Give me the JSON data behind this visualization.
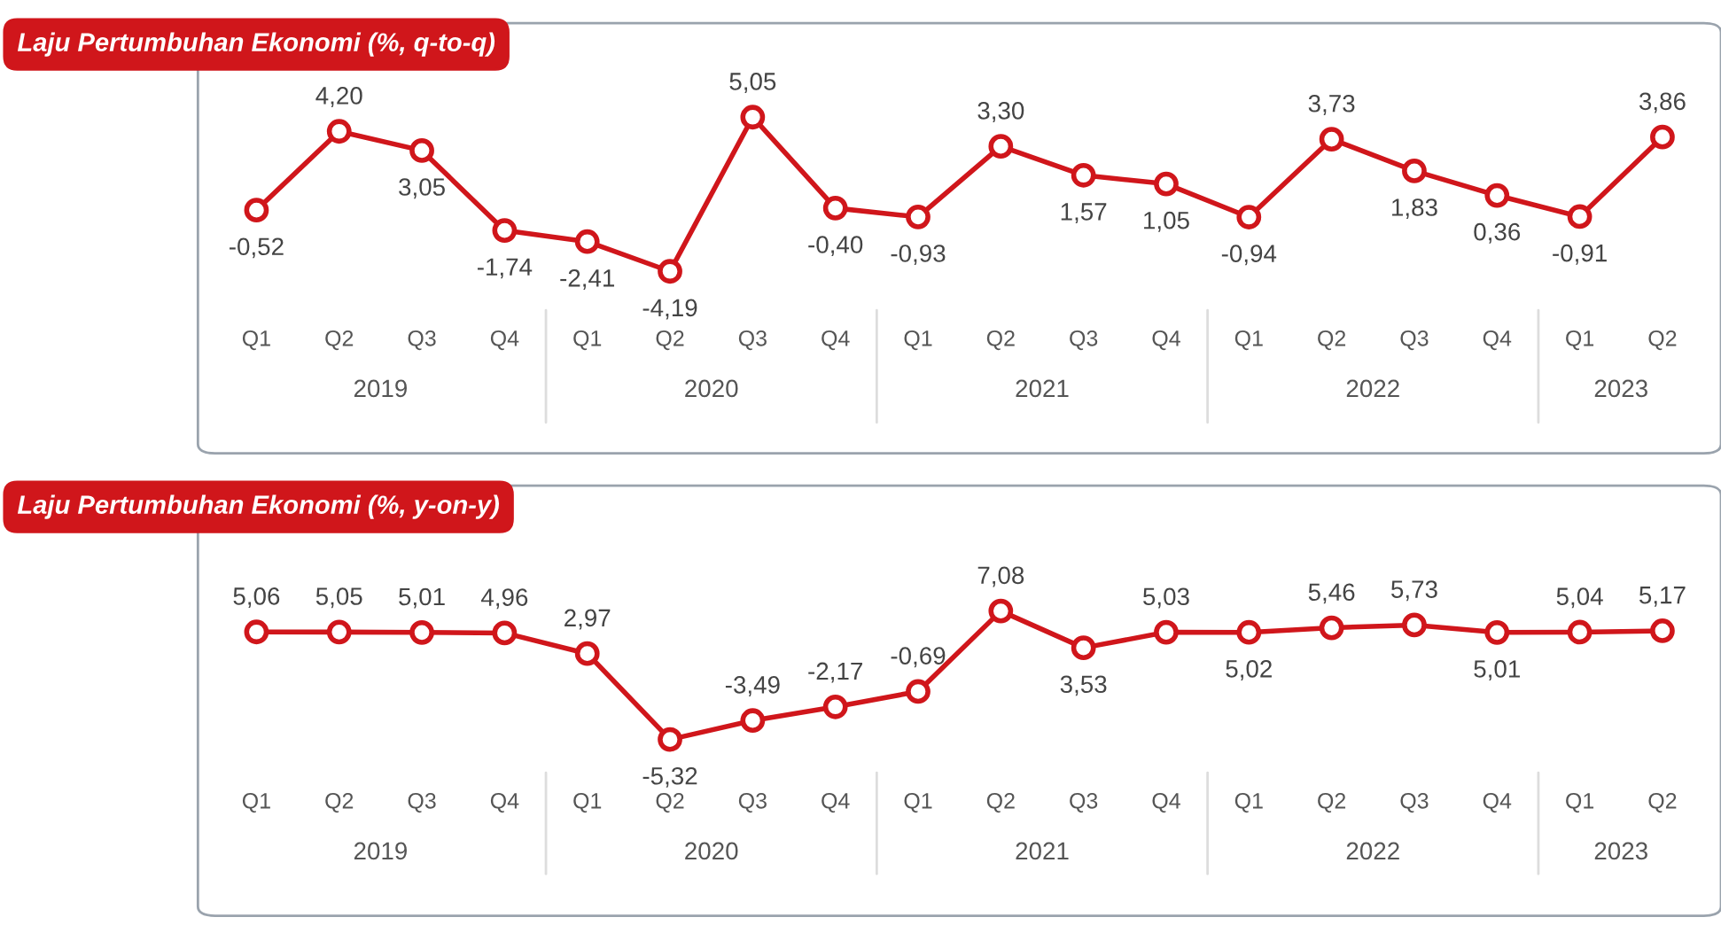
{
  "chart_data": [
    {
      "type": "line",
      "title": "Laju Pertumbuhan Ekonomi (%, q-to-q)",
      "categories": [
        "Q1",
        "Q2",
        "Q3",
        "Q4",
        "Q1",
        "Q2",
        "Q3",
        "Q4",
        "Q1",
        "Q2",
        "Q3",
        "Q4",
        "Q1",
        "Q2",
        "Q3",
        "Q4",
        "Q1",
        "Q2"
      ],
      "series": [
        {
          "color": "#d0161b",
          "values": [
            -0.52,
            4.2,
            3.05,
            -1.74,
            -2.41,
            -4.19,
            5.05,
            -0.4,
            -0.93,
            3.3,
            1.57,
            1.05,
            -0.94,
            3.73,
            1.83,
            0.36,
            -0.91,
            3.86
          ],
          "value_labels": [
            "-0,52",
            "4,20",
            "3,05",
            "-1,74",
            "-2,41",
            "-4,19",
            "5,05",
            "-0,40",
            "-0,93",
            "3,30",
            "1,57",
            "1,05",
            "-0,94",
            "3,73",
            "1,83",
            "0,36",
            "-0,91",
            "3,86"
          ]
        }
      ],
      "annotations": [
        "2019",
        "2020",
        "2021",
        "2022",
        "2023"
      ],
      "marker": "circle",
      "line_style": "solid",
      "grid": false,
      "legend": false
    },
    {
      "type": "line",
      "title": "Laju Pertumbuhan Ekonomi (%, y-on-y)",
      "categories": [
        "Q1",
        "Q2",
        "Q3",
        "Q4",
        "Q1",
        "Q2",
        "Q3",
        "Q4",
        "Q1",
        "Q2",
        "Q3",
        "Q4",
        "Q1",
        "Q2",
        "Q3",
        "Q4",
        "Q1",
        "Q2"
      ],
      "series": [
        {
          "color": "#d0161b",
          "values": [
            5.06,
            5.05,
            5.01,
            4.96,
            2.97,
            -5.32,
            -3.49,
            -2.17,
            -0.69,
            7.08,
            3.53,
            5.03,
            5.02,
            5.46,
            5.73,
            5.01,
            5.04,
            5.17
          ],
          "value_labels": [
            "5,06",
            "5,05",
            "5,01",
            "4,96",
            "2,97",
            "-5,32",
            "-3,49",
            "-2,17",
            "-0,69",
            "7,08",
            "3,53",
            "5,03",
            "5,02",
            "5,46",
            "5,73",
            "5,01",
            "5,04",
            "5,17"
          ]
        }
      ],
      "annotations": [
        "2019",
        "2020",
        "2021",
        "2022",
        "2023"
      ],
      "marker": "circle",
      "line_style": "solid",
      "grid": false,
      "legend": false
    }
  ]
}
